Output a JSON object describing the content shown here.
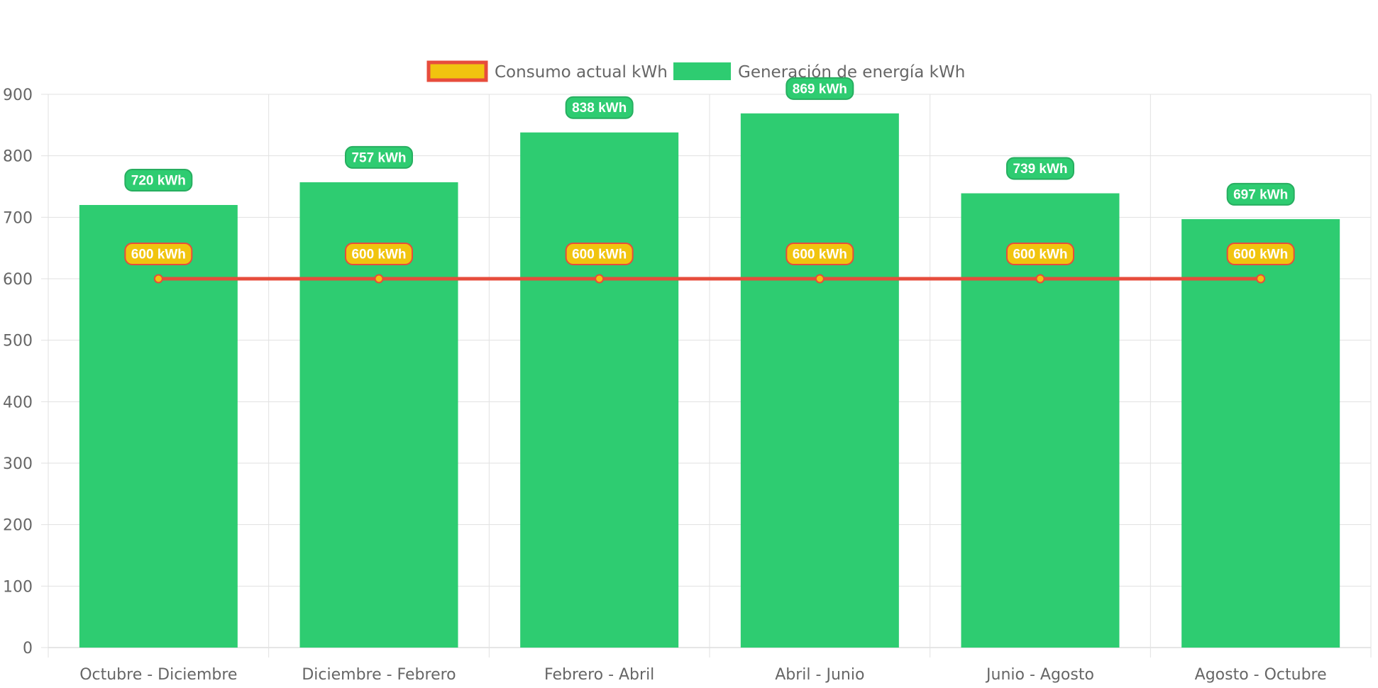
{
  "chart_data": {
    "type": "bar",
    "categories": [
      "Octubre - Diciembre",
      "Diciembre - Febrero",
      "Febrero - Abril",
      "Abril - Junio",
      "Junio - Agosto",
      "Agosto - Octubre"
    ],
    "series": [
      {
        "name": "Consumo actual kWh",
        "type": "line",
        "values": [
          600,
          600,
          600,
          600,
          600,
          600
        ],
        "labels": [
          "600 kWh",
          "600 kWh",
          "600 kWh",
          "600 kWh",
          "600 kWh",
          "600 kWh"
        ],
        "line_color": "#e74c3c",
        "fill_color": "#f1c40f"
      },
      {
        "name": "Generación de energía kWh",
        "type": "bar",
        "values": [
          720,
          757,
          838,
          869,
          739,
          697
        ],
        "labels": [
          "720 kWh",
          "757 kWh",
          "838 kWh",
          "869 kWh",
          "739 kWh",
          "697 kWh"
        ],
        "color": "#2ecc71"
      }
    ],
    "ylim": [
      0,
      900
    ],
    "yticks": [
      "0",
      "100",
      "200",
      "300",
      "400",
      "500",
      "600",
      "700",
      "800",
      "900"
    ],
    "grid": true,
    "legend_position": "top-center"
  }
}
